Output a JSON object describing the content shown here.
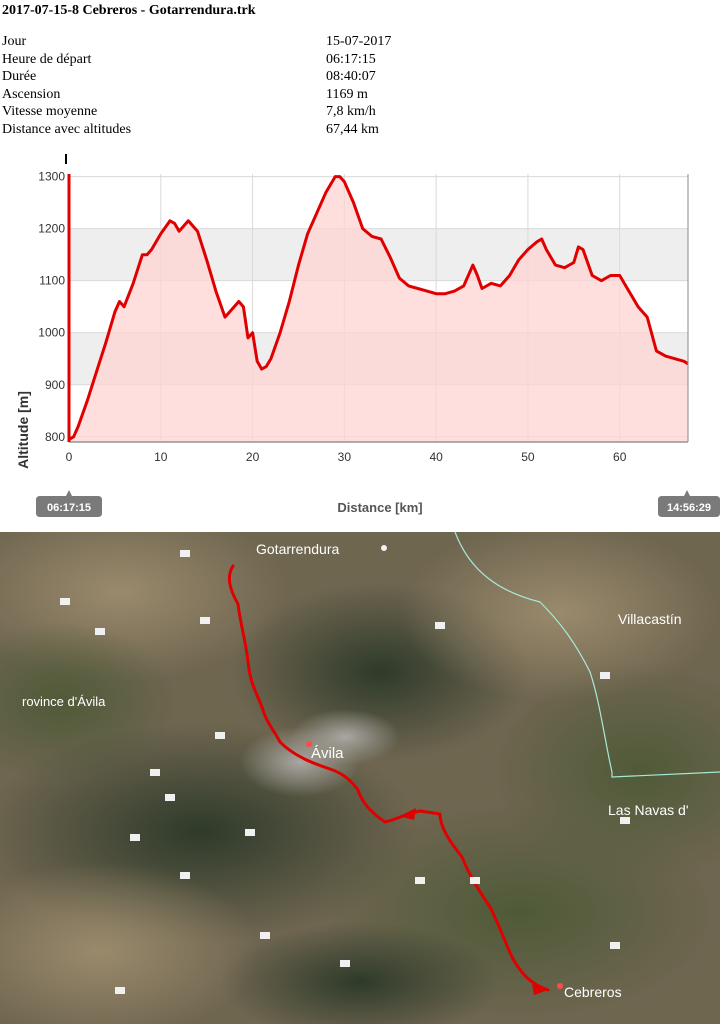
{
  "header": {
    "title": "2017-07-15-8 Cebreros - Gotarrendura.trk"
  },
  "stats": [
    {
      "label": "Jour",
      "value": "15-07-2017"
    },
    {
      "label": "Heure de départ",
      "value": "06:17:15"
    },
    {
      "label": "Durée",
      "value": "08:40:07"
    },
    {
      "label": "Ascension",
      "value": "1169 m"
    },
    {
      "label": "Vitesse moyenne",
      "value": "7,8 km/h"
    },
    {
      "label": "Distance avec altitudes",
      "value": "67,44 km"
    }
  ],
  "chart_data": {
    "type": "area",
    "title": "",
    "xlabel": "Distance [km]",
    "ylabel": "Altitude [m]",
    "xlim": [
      0,
      67.44
    ],
    "ylim": [
      790,
      1305
    ],
    "xticks": [
      0,
      10,
      20,
      30,
      40,
      50,
      60
    ],
    "yticks": [
      800,
      900,
      1000,
      1100,
      1200,
      1300
    ],
    "grid": true,
    "start_time": "06:17:15",
    "end_time": "14:56:29",
    "line_color": "#e00000",
    "fill_color": "#ffd3d3",
    "series": [
      {
        "x": [
          0,
          0.5,
          1,
          2,
          3,
          4,
          5,
          5.5,
          6,
          7,
          8,
          8.5,
          9,
          10,
          11,
          11.5,
          12,
          13,
          14,
          15,
          16,
          17,
          18,
          18.5,
          19,
          19.5,
          20,
          20.5,
          21,
          21.5,
          22,
          23,
          24,
          25,
          26,
          27,
          28,
          29,
          29.5,
          30,
          31,
          32,
          33,
          34,
          35,
          36,
          37,
          38,
          39,
          40,
          41,
          42,
          43,
          44,
          44.5,
          45,
          46,
          47,
          48,
          49,
          50,
          51,
          51.5,
          52,
          53,
          54,
          55,
          55.5,
          56,
          57,
          58,
          59,
          60,
          61,
          62,
          63,
          64,
          65,
          66,
          67,
          67.44
        ],
        "y": [
          795,
          800,
          820,
          870,
          925,
          980,
          1040,
          1060,
          1050,
          1095,
          1150,
          1150,
          1160,
          1190,
          1215,
          1210,
          1195,
          1215,
          1195,
          1140,
          1080,
          1030,
          1050,
          1060,
          1050,
          990,
          1000,
          945,
          930,
          935,
          950,
          1000,
          1060,
          1130,
          1190,
          1230,
          1270,
          1300,
          1300,
          1290,
          1250,
          1200,
          1185,
          1180,
          1145,
          1105,
          1090,
          1085,
          1080,
          1075,
          1075,
          1080,
          1090,
          1130,
          1110,
          1085,
          1095,
          1090,
          1110,
          1140,
          1160,
          1175,
          1180,
          1160,
          1130,
          1125,
          1135,
          1165,
          1160,
          1110,
          1100,
          1110,
          1110,
          1080,
          1050,
          1030,
          965,
          955,
          950,
          945,
          940
        ]
      }
    ]
  },
  "map": {
    "route_color": "#e00000",
    "labels": [
      {
        "id": "gotarrendura",
        "text": "Gotarrendura"
      },
      {
        "id": "villacastin",
        "text": "Villacastín"
      },
      {
        "id": "province",
        "text": "rovince d'Ávila"
      },
      {
        "id": "avila",
        "text": "Ávila"
      },
      {
        "id": "navas",
        "text": "Las Navas d'"
      },
      {
        "id": "cebreros",
        "text": "Cebreros"
      }
    ]
  }
}
